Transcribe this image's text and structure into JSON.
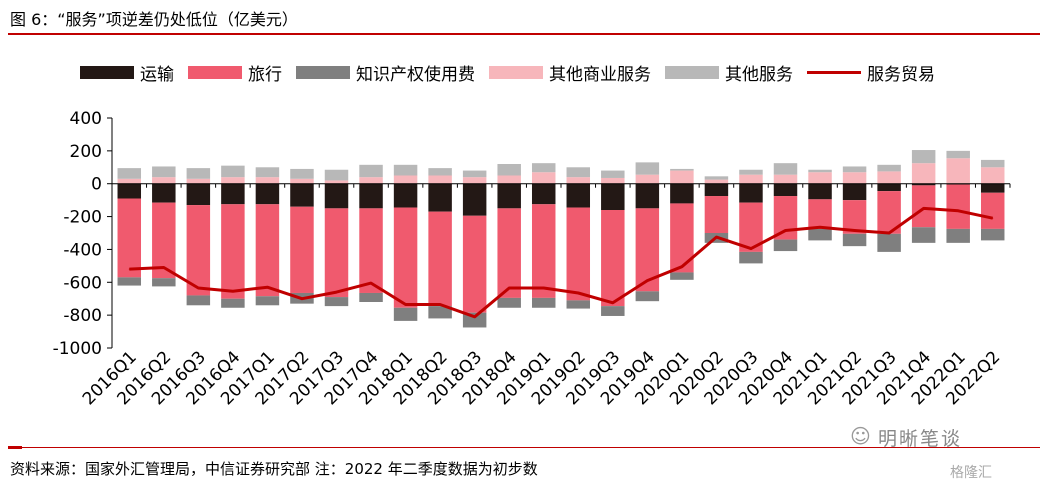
{
  "title": "图 6：“服务”项逆差仍处低位（亿美元）",
  "source": "资料来源：国家外汇管理局，中信证券研究部  注：2022 年二季度数据为初步数",
  "watermark": {
    "text": "明晰笔谈",
    "badge": "格隆汇",
    "icon": "wechat-icon"
  },
  "colors": {
    "transport": "#231815",
    "travel": "#f05a6e",
    "ip": "#7f7f7f",
    "other_business": "#f7b6bb",
    "other_services": "#b8b8b8",
    "services_trade": "#c00000",
    "accent_rule": "#c00000"
  },
  "chart_data": {
    "type": "bar",
    "stacked": true,
    "categories": [
      "2016Q1",
      "2016Q2",
      "2016Q3",
      "2016Q4",
      "2017Q1",
      "2017Q2",
      "2017Q3",
      "2017Q4",
      "2018Q1",
      "2018Q2",
      "2018Q3",
      "2018Q4",
      "2019Q1",
      "2019Q2",
      "2019Q3",
      "2019Q4",
      "2020Q1",
      "2020Q2",
      "2020Q3",
      "2020Q4",
      "2021Q1",
      "2021Q2",
      "2021Q3",
      "2021Q4",
      "2022Q1",
      "2022Q2"
    ],
    "ylim": [
      -1000,
      400
    ],
    "yticks": [
      "400",
      "200",
      "0",
      "-200",
      "-400",
      "-600",
      "-800",
      "-1000"
    ],
    "ytick_values": [
      400,
      200,
      0,
      -200,
      -400,
      -600,
      -800,
      -1000
    ],
    "series": [
      {
        "name": "运输",
        "key": "transport",
        "kind": "bar",
        "values": [
          -90,
          -115,
          -130,
          -125,
          -125,
          -140,
          -150,
          -150,
          -145,
          -170,
          -195,
          -150,
          -125,
          -145,
          -160,
          -150,
          -120,
          -75,
          -115,
          -75,
          -95,
          -100,
          -45,
          -10,
          -5,
          -55
        ]
      },
      {
        "name": "旅行",
        "key": "travel",
        "kind": "bar",
        "values": [
          -480,
          -460,
          -550,
          -575,
          -560,
          -525,
          -540,
          -515,
          -610,
          -575,
          -590,
          -545,
          -570,
          -565,
          -585,
          -505,
          -420,
          -225,
          -300,
          -265,
          -180,
          -205,
          -260,
          -255,
          -270,
          -220
        ]
      },
      {
        "name": "知识产权使用费",
        "key": "ip",
        "kind": "bar",
        "values": [
          -50,
          -50,
          -60,
          -55,
          -55,
          -65,
          -55,
          -55,
          -80,
          -75,
          -90,
          -60,
          -60,
          -50,
          -60,
          -60,
          -45,
          -60,
          -70,
          -70,
          -70,
          -75,
          -110,
          -95,
          -85,
          -70
        ]
      },
      {
        "name": "其他商业服务",
        "key": "other_business",
        "kind": "bar",
        "values": [
          30,
          40,
          30,
          40,
          40,
          30,
          20,
          40,
          50,
          50,
          40,
          50,
          70,
          40,
          35,
          55,
          80,
          25,
          55,
          55,
          70,
          70,
          75,
          125,
          155,
          100
        ]
      },
      {
        "name": "其他服务",
        "key": "other_services",
        "kind": "bar",
        "values": [
          65,
          65,
          65,
          70,
          60,
          60,
          65,
          75,
          65,
          45,
          40,
          70,
          55,
          60,
          45,
          75,
          10,
          20,
          30,
          70,
          15,
          35,
          40,
          80,
          45,
          45
        ]
      },
      {
        "name": "服务贸易",
        "key": "services_trade",
        "kind": "line",
        "values": [
          -520,
          -510,
          -635,
          -655,
          -630,
          -700,
          -660,
          -605,
          -735,
          -735,
          -810,
          -635,
          -635,
          -665,
          -725,
          -590,
          -505,
          -325,
          -395,
          -285,
          -265,
          -285,
          -300,
          -150,
          -165,
          -210
        ]
      }
    ]
  }
}
